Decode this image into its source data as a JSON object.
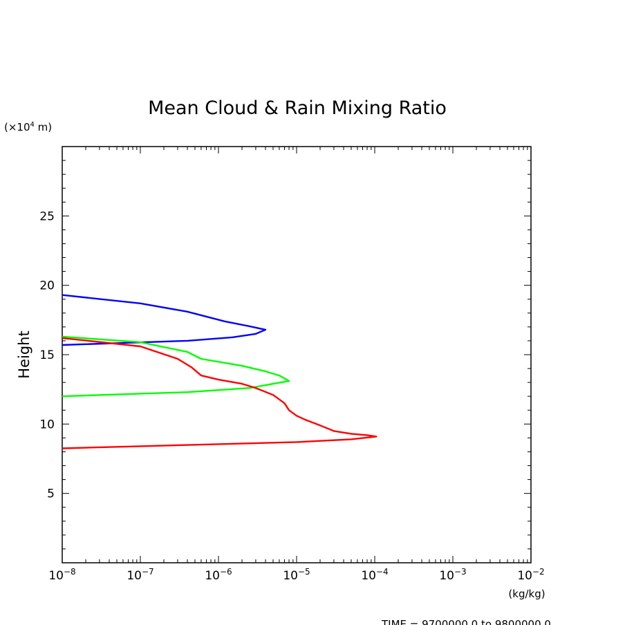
{
  "chart_data": {
    "type": "line",
    "title": "Mean Cloud & Rain Mixing Ratio",
    "ylabel": "Height",
    "y_unit_prefix": "(×10",
    "y_unit_exp": "4",
    "y_unit_suffix": " m)",
    "xlabel": "(kg/kg)",
    "x_scale": "log",
    "xlim": [
      1e-08,
      0.01
    ],
    "ylim": [
      0,
      30
    ],
    "x_tick_values": [
      1e-08,
      1e-07,
      1e-06,
      1e-05,
      0.0001,
      0.001,
      0.01
    ],
    "x_tick_base": "10",
    "x_tick_exps": [
      "−8",
      "−7",
      "−6",
      "−5",
      "−4",
      "−3",
      "−2"
    ],
    "y_ticks": [
      5,
      10,
      15,
      20,
      25
    ],
    "y_tick_labels": [
      "5",
      "10",
      "15",
      "20",
      "25"
    ],
    "footer": "TIME = 9700000.0 to 9800000.0",
    "series": [
      {
        "color": "#0000ff",
        "points": [
          [
            1e-08,
            19.3
          ],
          [
            1e-07,
            18.7
          ],
          [
            4e-07,
            18.1
          ],
          [
            1.2e-06,
            17.4
          ],
          [
            2.5e-06,
            17.05
          ],
          [
            4e-06,
            16.8
          ],
          [
            3e-06,
            16.5
          ],
          [
            1.5e-06,
            16.25
          ],
          [
            4e-07,
            16.0
          ],
          [
            1e-08,
            15.7
          ]
        ]
      },
      {
        "color": "#00ff00",
        "points": [
          [
            1e-08,
            16.3
          ],
          [
            1e-07,
            15.9
          ],
          [
            4e-07,
            15.2
          ],
          [
            6e-07,
            14.7
          ],
          [
            2e-06,
            14.2
          ],
          [
            4e-06,
            13.8
          ],
          [
            6e-06,
            13.5
          ],
          [
            8e-06,
            13.1
          ],
          [
            5e-06,
            12.9
          ],
          [
            2.5e-06,
            12.6
          ],
          [
            4e-07,
            12.3
          ],
          [
            1e-08,
            12.0
          ]
        ]
      },
      {
        "color": "#ff0000",
        "points": [
          [
            1e-08,
            16.2
          ],
          [
            1e-07,
            15.6
          ],
          [
            3e-07,
            14.7
          ],
          [
            4.5e-07,
            14.1
          ],
          [
            6e-07,
            13.5
          ],
          [
            1e-06,
            13.2
          ],
          [
            2e-06,
            12.9
          ],
          [
            3e-06,
            12.6
          ],
          [
            5e-06,
            12.1
          ],
          [
            7e-06,
            11.5
          ],
          [
            8e-06,
            11.0
          ],
          [
            1e-05,
            10.6
          ],
          [
            1.3e-05,
            10.3
          ],
          [
            2e-05,
            9.9
          ],
          [
            3e-05,
            9.5
          ],
          [
            5e-05,
            9.3
          ],
          [
            8e-05,
            9.2
          ],
          [
            0.000105,
            9.1
          ],
          [
            5e-05,
            8.9
          ],
          [
            1e-05,
            8.7
          ],
          [
            1e-06,
            8.55
          ],
          [
            1e-07,
            8.4
          ],
          [
            1e-08,
            8.25
          ]
        ]
      }
    ]
  }
}
